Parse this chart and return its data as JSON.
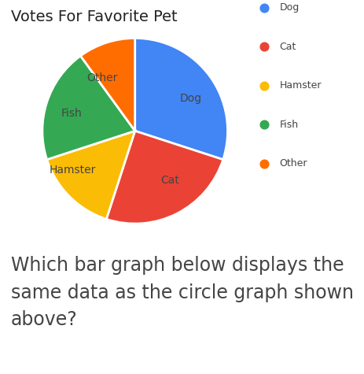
{
  "title": "Votes For Favorite Pet",
  "slices": [
    {
      "label": "Dog",
      "value": 30,
      "color": "#4285F4"
    },
    {
      "label": "Cat",
      "value": 25,
      "color": "#EA4335"
    },
    {
      "label": "Hamster",
      "value": 15,
      "color": "#FBBC05"
    },
    {
      "label": "Fish",
      "value": 20,
      "color": "#34A853"
    },
    {
      "label": "Other",
      "value": 10,
      "color": "#FF6D00"
    }
  ],
  "legend_labels": [
    "Dog",
    "Cat",
    "Hamster",
    "Fish",
    "Other"
  ],
  "legend_colors": [
    "#4285F4",
    "#EA4335",
    "#FBBC05",
    "#34A853",
    "#FF6D00"
  ],
  "title_fontsize": 14,
  "label_fontsize": 10,
  "background_color": "#ffffff",
  "question_text": "Which bar graph below displays the\nsame data as the circle graph shown\nabove?",
  "question_fontsize": 17,
  "text_color": "#444444"
}
